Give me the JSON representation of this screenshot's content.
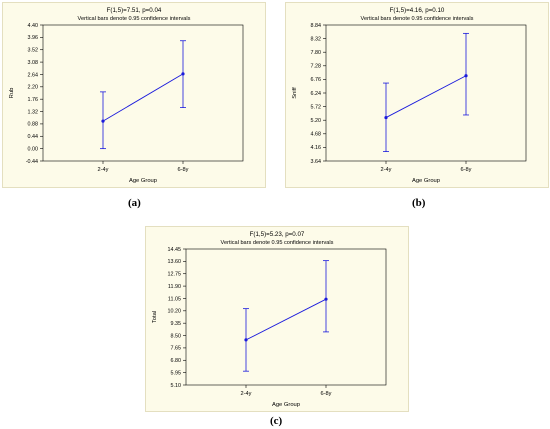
{
  "colors": {
    "line": "#1a1adc",
    "panel_bg": "#fdfbe9",
    "axis": "#000000"
  },
  "captions": [
    "(a)",
    "(b)",
    "(c)"
  ],
  "chart_data": [
    {
      "type": "line",
      "title": "F(1,5)=7.51, p=0.04",
      "subtitle": "Vertical bars denote 0.95 confidence intervals",
      "xlabel": "Age Group",
      "ylabel": "Rub",
      "categories": [
        "2-4y",
        "6-8y"
      ],
      "y_ticks": [
        "-0.44",
        "0.00",
        "0.44",
        "0.88",
        "1.32",
        "1.76",
        "2.20",
        "2.64",
        "3.08",
        "3.52",
        "3.96",
        "4.40"
      ],
      "ylim": [
        -0.44,
        4.4
      ],
      "values": [
        0.98,
        2.66
      ],
      "ci_low": [
        0.0,
        1.46
      ],
      "ci_high": [
        2.02,
        3.84
      ],
      "grid": false
    },
    {
      "type": "line",
      "title": "F(1,5)=4.16, p=0.10",
      "subtitle": "Vertical bars denote 0.95 confidence intervals",
      "xlabel": "Age Group",
      "ylabel": "Sniff",
      "categories": [
        "2-4y",
        "6-8y"
      ],
      "y_ticks": [
        "3.64",
        "4.16",
        "4.68",
        "5.20",
        "5.72",
        "6.24",
        "6.76",
        "7.28",
        "7.80",
        "8.32",
        "8.84"
      ],
      "ylim": [
        3.64,
        8.84
      ],
      "values": [
        5.3,
        6.9
      ],
      "ci_low": [
        4.0,
        5.4
      ],
      "ci_high": [
        6.62,
        8.52
      ],
      "grid": false
    },
    {
      "type": "line",
      "title": "F(1,5)=5.23, p=0.07",
      "subtitle": "Vertical bars denote 0.95 confidence intervals",
      "xlabel": "Age Group",
      "ylabel": "Total",
      "categories": [
        "2-4y",
        "6-8y"
      ],
      "y_ticks": [
        "5.10",
        "5.95",
        "6.80",
        "7.65",
        "8.50",
        "9.35",
        "10.20",
        "11.05",
        "11.90",
        "12.75",
        "13.60",
        "14.45"
      ],
      "ylim": [
        5.1,
        14.45
      ],
      "values": [
        8.2,
        11.0
      ],
      "ci_low": [
        6.05,
        8.75
      ],
      "ci_high": [
        10.35,
        13.65
      ],
      "grid": false
    }
  ]
}
